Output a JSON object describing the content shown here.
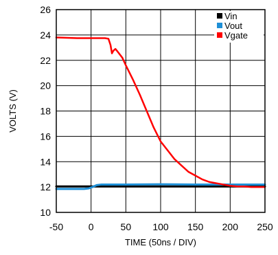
{
  "chart_data": {
    "type": "line",
    "title": "",
    "xlabel": "TIME (50ns / DIV)",
    "ylabel": "VOLTS (V)",
    "xlim": [
      -50,
      250
    ],
    "ylim": [
      10,
      26
    ],
    "x_ticks": [
      -50,
      0,
      50,
      100,
      150,
      200,
      250
    ],
    "y_ticks": [
      10,
      12,
      14,
      16,
      18,
      20,
      22,
      24,
      26
    ],
    "grid": true,
    "legend_position": "top-right",
    "series": [
      {
        "name": "Vin",
        "color": "#000000",
        "x": [
          -50,
          0,
          250
        ],
        "y": [
          12.05,
          12.05,
          12.05
        ]
      },
      {
        "name": "Vout",
        "color": "#1e8fd6",
        "x": [
          -50,
          -10,
          -3,
          2,
          8,
          15,
          50,
          100,
          150,
          200,
          250
        ],
        "y": [
          11.85,
          11.85,
          11.9,
          12.0,
          12.15,
          12.2,
          12.2,
          12.22,
          12.2,
          12.2,
          12.2
        ]
      },
      {
        "name": "Vgate",
        "color": "#ff0000",
        "x": [
          -50,
          -20,
          0,
          20,
          25,
          28,
          30,
          32,
          35,
          38,
          45,
          50,
          60,
          70,
          80,
          90,
          100,
          110,
          120,
          130,
          140,
          150,
          160,
          170,
          180,
          190,
          200,
          210,
          220,
          230,
          240,
          250
        ],
        "y": [
          23.8,
          23.75,
          23.75,
          23.75,
          23.7,
          23.2,
          22.55,
          22.75,
          22.9,
          22.7,
          22.2,
          21.6,
          20.5,
          19.3,
          18.0,
          16.7,
          15.6,
          14.9,
          14.2,
          13.7,
          13.2,
          12.9,
          12.6,
          12.4,
          12.3,
          12.2,
          12.1,
          12.05,
          12.05,
          12.0,
          12.0,
          12.0
        ]
      }
    ]
  }
}
